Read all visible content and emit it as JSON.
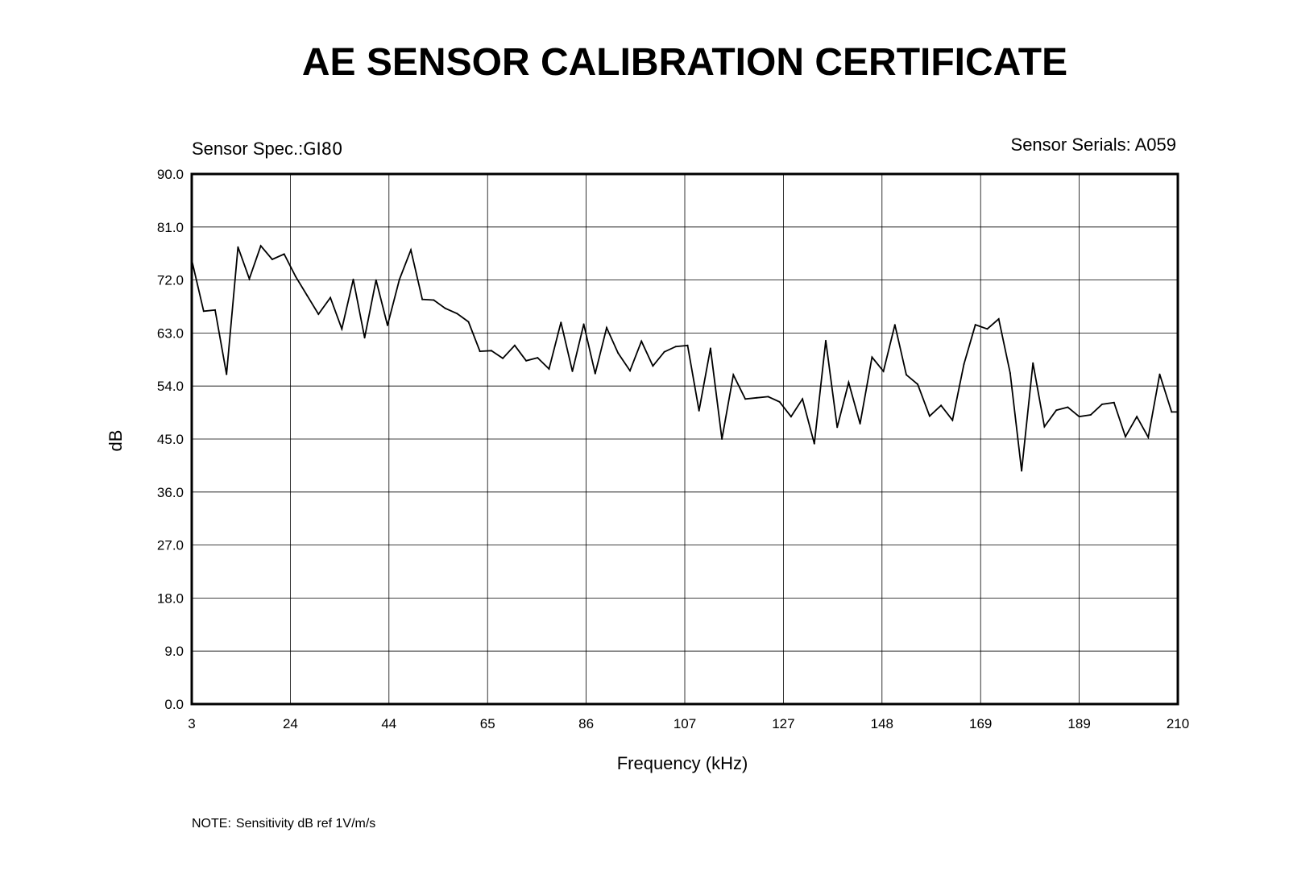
{
  "header": {
    "title": "AE SENSOR CALIBRATION CERTIFICATE",
    "sensor_spec_label": "Sensor Spec.:",
    "sensor_spec_value": "GI80",
    "sensor_serial_label": "Sensor Serials:",
    "sensor_serial_value": "A059"
  },
  "note": {
    "label": "NOTE:",
    "text": "Sensitivity dB ref 1V/m/s"
  },
  "chart_data": {
    "type": "line",
    "title": "",
    "xlabel": "Frequency (kHz)",
    "ylabel": "dB",
    "xlim": [
      3,
      210
    ],
    "ylim": [
      0,
      90
    ],
    "grid": true,
    "x_ticks": [
      "3",
      "24",
      "44",
      "65",
      "86",
      "107",
      "127",
      "148",
      "169",
      "189",
      "210"
    ],
    "y_ticks": [
      "0.0",
      "9.0",
      "18.0",
      "27.0",
      "36.0",
      "45.0",
      "54.0",
      "63.0",
      "72.0",
      "81.0",
      "90.0"
    ],
    "series": [
      {
        "x": [
          3,
          5.5,
          7.9,
          10.3,
          12.7,
          15.1,
          17.5,
          19.9,
          22.4,
          24.8,
          27.2,
          29.6,
          32.1,
          34.5,
          36.9,
          39.3,
          41.7,
          44.1,
          46.6,
          49,
          51.4,
          53.8,
          56.2,
          58.7,
          61.1,
          63.5,
          65.9,
          68.3,
          70.8,
          73.2,
          75.6,
          78,
          80.5,
          82.9,
          85.3,
          87.7,
          90.1,
          92.5,
          95,
          97.4,
          99.8,
          102.2,
          104.6,
          107.1,
          109.5,
          111.9,
          114.3,
          116.7,
          119.2,
          121.6,
          124,
          126.4,
          128.8,
          131.2,
          133.7,
          136.1,
          138.5,
          140.9,
          143.3,
          145.8,
          148.2,
          150.6,
          153,
          155.4,
          157.9,
          160.3,
          162.7,
          165.1,
          167.5,
          170,
          172.4,
          174.8,
          177.2,
          179.6,
          182,
          184.5,
          186.9,
          189.3,
          191.7,
          194.1,
          196.6,
          199,
          201.4,
          203.8,
          206.2,
          208.7,
          210
        ],
        "y": [
          75.4,
          66.7,
          66.9,
          56.0,
          77.6,
          72.2,
          77.8,
          75.5,
          76.4,
          72.6,
          69.4,
          66.2,
          69.0,
          63.7,
          72.1,
          62.2,
          72.0,
          64.3,
          72.1,
          77.1,
          68.7,
          68.6,
          67.2,
          66.3,
          64.9,
          59.9,
          60.0,
          58.7,
          60.9,
          58.3,
          58.8,
          56.9,
          64.8,
          56.5,
          64.5,
          56.1,
          63.9,
          59.6,
          56.6,
          61.6,
          57.4,
          59.8,
          60.7,
          60.9,
          49.8,
          60.4,
          45.0,
          55.9,
          51.8,
          52.0,
          52.2,
          51.3,
          48.8,
          51.8,
          44.2,
          61.7,
          47.0,
          54.6,
          47.6,
          58.9,
          56.5,
          64.4,
          55.9,
          54.3,
          48.9,
          50.7,
          48.2,
          57.7,
          64.4,
          63.7,
          65.4,
          56.2,
          39.6,
          57.9,
          47.1,
          49.9,
          50.4,
          48.8,
          49.1,
          50.9,
          51.2,
          45.4,
          48.8,
          45.3,
          56.0,
          49.6,
          49.6
        ]
      }
    ]
  }
}
